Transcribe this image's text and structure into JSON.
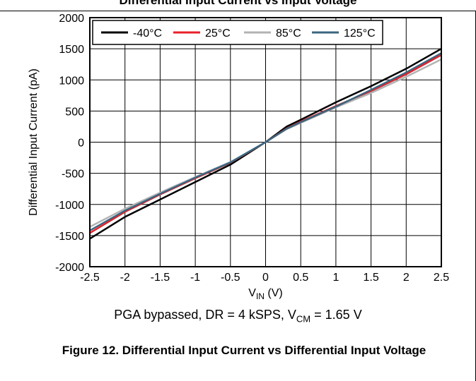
{
  "header": {
    "caption_fragment": "Differential Input Current vs Input Voltage"
  },
  "chart_data": {
    "type": "line",
    "xlabel_main": "V",
    "xlabel_sub": "IN",
    "xlabel_unit": " (V)",
    "ylabel": "Differential Input Current (pA)",
    "xlim": [
      -2.5,
      2.5
    ],
    "ylim": [
      -2000,
      2000
    ],
    "x_ticks": [
      -2.5,
      -2,
      -1.5,
      -1,
      -0.5,
      0,
      0.5,
      1,
      1.5,
      2,
      2.5
    ],
    "y_ticks": [
      -2000,
      -1500,
      -1000,
      -500,
      0,
      500,
      1000,
      1500,
      2000
    ],
    "grid": true,
    "legend_position": "top-left",
    "x": [
      -2.5,
      -2,
      -1.5,
      -1,
      -0.5,
      0,
      0.3,
      0.5,
      1,
      1.5,
      2,
      2.5
    ],
    "series": [
      {
        "name": "-40°C",
        "color": "#000000",
        "values": [
          -1550,
          -1200,
          -920,
          -640,
          -360,
          0,
          250,
          360,
          640,
          900,
          1180,
          1500
        ]
      },
      {
        "name": "25°C",
        "color": "#e8202a",
        "values": [
          -1460,
          -1120,
          -840,
          -580,
          -330,
          0,
          220,
          330,
          580,
          820,
          1090,
          1400
        ]
      },
      {
        "name": "85°C",
        "color": "#b3b3b3",
        "values": [
          -1360,
          -1070,
          -810,
          -560,
          -320,
          0,
          210,
          310,
          560,
          790,
          1050,
          1330
        ]
      },
      {
        "name": "125°C",
        "color": "#3a6680",
        "values": [
          -1420,
          -1100,
          -830,
          -570,
          -325,
          0,
          215,
          320,
          570,
          840,
          1120,
          1430
        ]
      }
    ]
  },
  "conditions": {
    "prefix": "PGA bypassed, DR = 4 kSPS, V",
    "sub": "CM",
    "suffix": " = 1.65 V"
  },
  "figure_caption": "Figure 12. Differential Input Current vs Differential Input Voltage"
}
